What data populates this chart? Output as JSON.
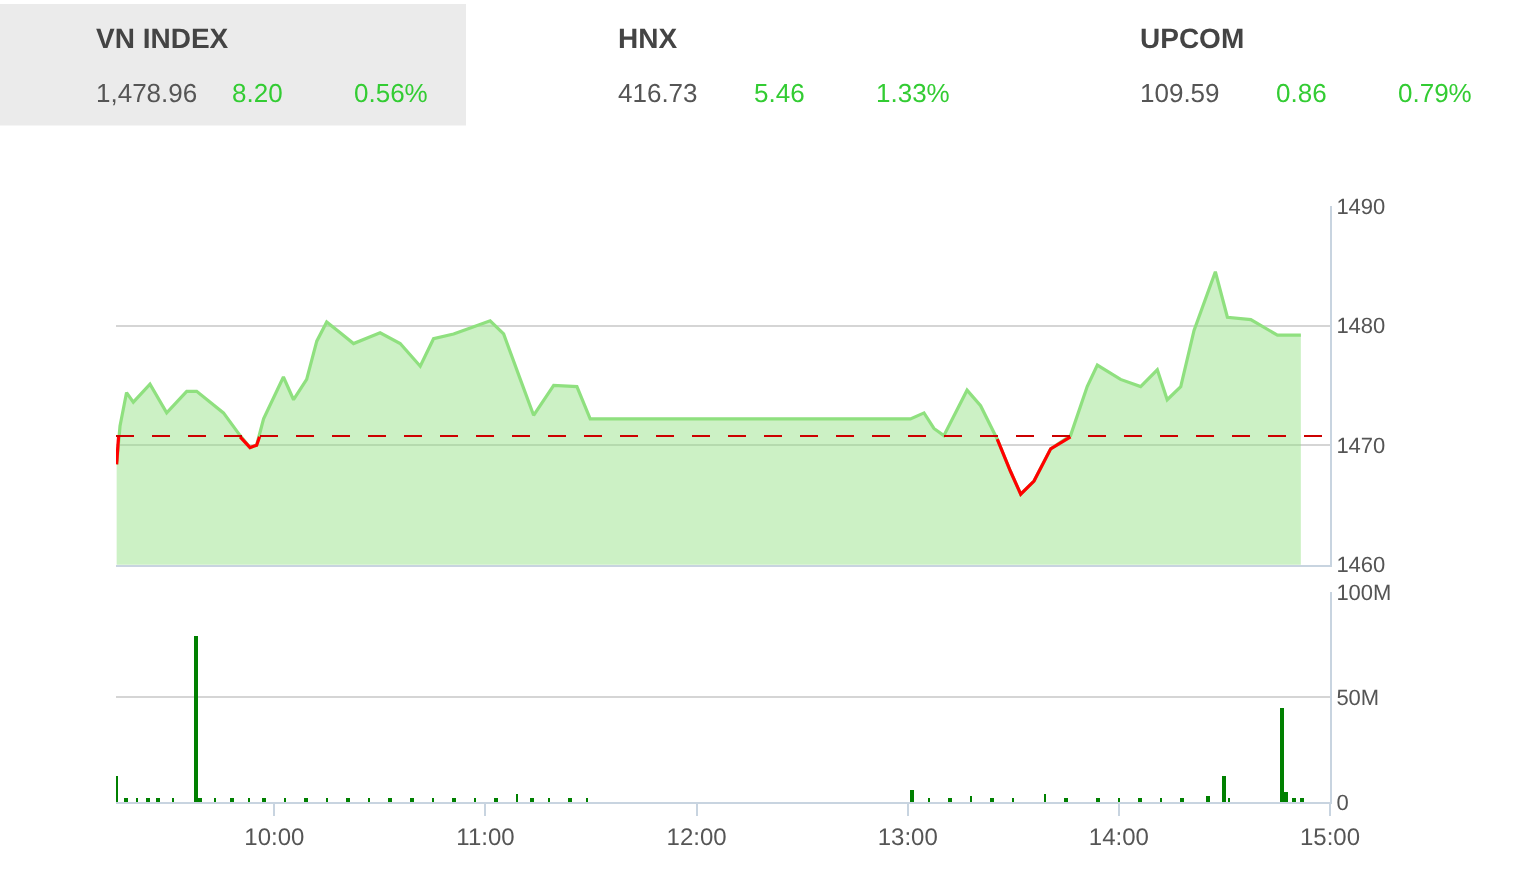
{
  "chart_data": [
    {
      "type": "other",
      "annotations": [
        "VN INDEX",
        "1,478.96",
        "8.20",
        "0.56%",
        "HNX",
        "416.73",
        "5.46",
        "1.33%",
        "UPCOM",
        "109.59",
        "0.86",
        "0.79%"
      ]
    },
    {
      "type": "area",
      "xlim": [
        9.25,
        15
      ],
      "ylim": [
        1460,
        1490
      ],
      "yticks": [
        1460,
        1470,
        1480,
        1490
      ],
      "tick_labels": "y",
      "grid": "y",
      "series": [
        {
          "color": "#8fe07f",
          "type": "area",
          "x": [
            9.253,
            9.269,
            9.3,
            9.332,
            9.411,
            9.49,
            9.585,
            9.632,
            9.759,
            9.838,
            9.885,
            9.916,
            9.949,
            10.043,
            10.091,
            10.153,
            10.201,
            10.248,
            10.312,
            10.375,
            10.501,
            10.596,
            10.691,
            10.754,
            10.849,
            10.928,
            11.022,
            11.086,
            11.165,
            11.228,
            11.323,
            11.433,
            11.496,
            13.013,
            13.077,
            13.124,
            13.171,
            13.281,
            13.345,
            13.424,
            13.487,
            13.535,
            13.598,
            13.677,
            13.771,
            13.85,
            13.898,
            14.008,
            14.103,
            14.182,
            14.229,
            14.293,
            14.356,
            14.457,
            14.514,
            14.625,
            14.751,
            14.862
          ],
          "values": [
            1468.4,
            1471.6,
            1474.4,
            1473.6,
            1475.1,
            1472.7,
            1474.5,
            1474.5,
            1472.7,
            1470.8,
            1469.8,
            1470.0,
            1472.2,
            1475.7,
            1473.8,
            1475.5,
            1478.7,
            1480.3,
            1479.4,
            1478.5,
            1479.4,
            1478.5,
            1476.6,
            1478.9,
            1479.3,
            1479.8,
            1480.4,
            1479.3,
            1475.5,
            1472.5,
            1475.0,
            1474.9,
            1472.2,
            1472.2,
            1472.7,
            1471.4,
            1470.8,
            1474.6,
            1473.3,
            1470.5,
            1467.8,
            1465.9,
            1467.0,
            1469.7,
            1470.8,
            1474.9,
            1476.7,
            1475.5,
            1474.9,
            1476.3,
            1473.8,
            1474.9,
            1479.6,
            1484.5,
            1480.7,
            1480.5,
            1479.2,
            1479.2
          ]
        },
        {
          "color": "#ff0000",
          "type": "line",
          "x": [
            9.253,
            9.262,
            9.5,
            9.838,
            9.885,
            9.916,
            9.93,
            11.0,
            13.424,
            13.487,
            13.535,
            13.598,
            13.677,
            13.771
          ],
          "values": [
            1468.4,
            1470.7,
            null,
            1470.7,
            1469.8,
            1470.0,
            1470.7,
            null,
            1470.5,
            1467.8,
            1465.9,
            1467.0,
            1469.7,
            1470.7
          ]
        }
      ],
      "ref_lines": [
        {
          "axis": "y",
          "value": 1470.76,
          "color": "#cc0000",
          "line_style": "dashed"
        }
      ]
    },
    {
      "type": "bar",
      "xlim": [
        9.25,
        15
      ],
      "xticks": [
        {
          "value": 10,
          "label": "10:00"
        },
        {
          "value": 11,
          "label": "11:00"
        },
        {
          "value": 12,
          "label": "12:00"
        },
        {
          "value": 13,
          "label": "13:00"
        },
        {
          "value": 14,
          "label": "14:00"
        },
        {
          "value": 15,
          "label": "15:00"
        }
      ],
      "ylim": [
        0,
        100
      ],
      "yticks": [
        0,
        {
          "value": 50,
          "label": "50M"
        },
        {
          "value": 100,
          "label": "100M"
        }
      ],
      "grid": "y",
      "series": [
        {
          "color": "#008000",
          "x": [
            9.255,
            9.3,
            9.35,
            9.4,
            9.45,
            9.52,
            9.626,
            9.65,
            9.72,
            9.8,
            9.88,
            9.95,
            10.05,
            10.15,
            10.25,
            10.35,
            10.45,
            10.55,
            10.65,
            10.75,
            10.85,
            10.95,
            11.05,
            11.15,
            11.22,
            11.3,
            11.4,
            11.48,
            13.02,
            13.1,
            13.2,
            13.3,
            13.4,
            13.5,
            13.65,
            13.75,
            13.9,
            14.0,
            14.1,
            14.2,
            14.3,
            14.42,
            14.495,
            14.52,
            14.77,
            14.79,
            14.83,
            14.87
          ],
          "values": [
            12,
            1.5,
            1,
            1,
            1.5,
            1,
            79,
            1,
            1.5,
            1.5,
            2,
            1.5,
            1.5,
            1.5,
            1,
            1.5,
            1,
            1,
            1,
            1.5,
            1,
            1,
            1,
            3.5,
            1,
            1,
            1,
            1,
            5.5,
            1,
            1.5,
            3,
            2,
            2,
            3.5,
            1,
            1.5,
            1,
            1,
            1,
            1.5,
            3,
            12,
            2,
            45,
            4.7,
            1.5,
            1
          ]
        }
      ]
    }
  ]
}
